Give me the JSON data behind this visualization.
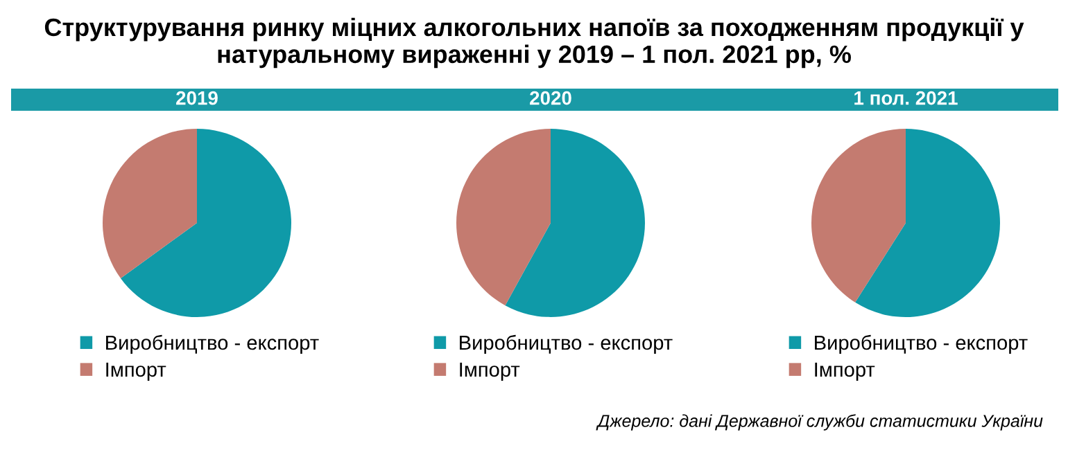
{
  "chart_data": [
    {
      "type": "pie",
      "title": "2019",
      "categories": [
        "Виробництво - експорт",
        "Імпорт"
      ],
      "values": [
        65,
        35
      ],
      "colors": [
        "#0f9aa8",
        "#c47b70"
      ],
      "legend": "bottom",
      "annotations": [
        "Структурування ринку міцних алкогольних напоїв за походженням продукції у натуральному вираженні у 2019 – 1 пол. 2021 рр, %"
      ]
    },
    {
      "type": "pie",
      "title": "2020",
      "categories": [
        "Виробництво - експорт",
        "Імпорт"
      ],
      "values": [
        58,
        42
      ],
      "colors": [
        "#0f9aa8",
        "#c47b70"
      ],
      "legend": "bottom"
    },
    {
      "type": "pie",
      "title": "1 пол. 2021",
      "categories": [
        "Виробництво - експорт",
        "Імпорт"
      ],
      "values": [
        59,
        41
      ],
      "colors": [
        "#0f9aa8",
        "#c47b70"
      ],
      "legend": "bottom",
      "annotations": [
        "Джерело: дані Державної служби статистики України"
      ]
    }
  ]
}
